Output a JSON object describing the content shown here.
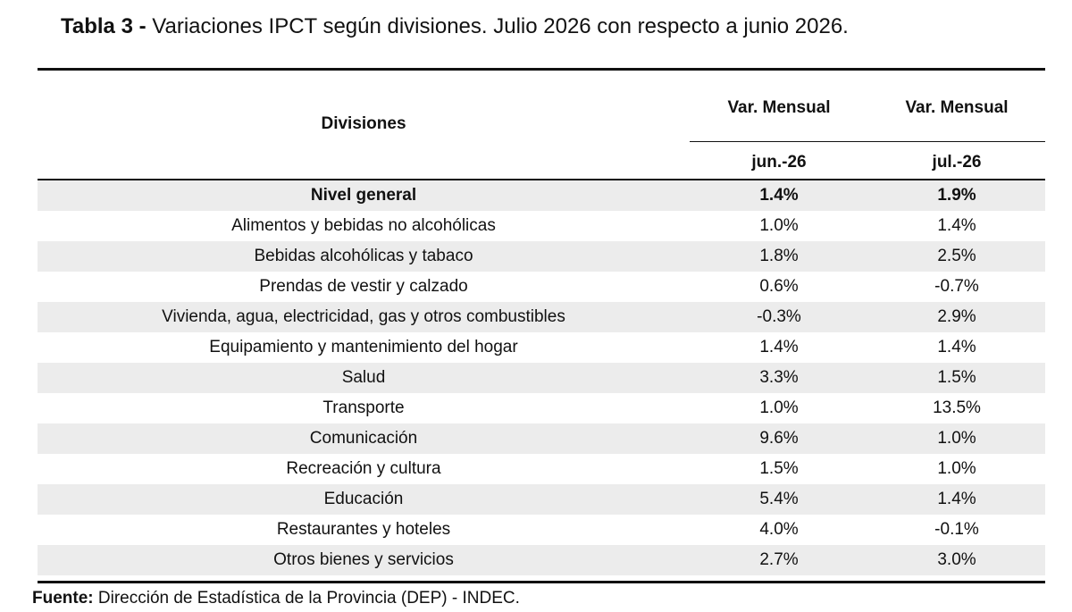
{
  "title": {
    "prefix": "Tabla 3 -",
    "text": "Variaciones IPCT según divisiones. Julio 2026 con respecto a junio 2026."
  },
  "table": {
    "header": {
      "divisions": "Divisiones",
      "var_col1": "Var. Mensual",
      "var_col2": "Var. Mensual",
      "period_col1": "jun.-26",
      "period_col2": "jul.-26"
    },
    "rows": [
      {
        "division": "Nivel general",
        "jun": "1.4%",
        "jul": "1.9%"
      },
      {
        "division": "Alimentos y bebidas no alcohólicas",
        "jun": "1.0%",
        "jul": "1.4%"
      },
      {
        "division": "Bebidas alcohólicas y tabaco",
        "jun": "1.8%",
        "jul": "2.5%"
      },
      {
        "division": "Prendas de vestir y calzado",
        "jun": "0.6%",
        "jul": "-0.7%"
      },
      {
        "division": "Vivienda, agua, electricidad, gas y otros combustibles",
        "jun": "-0.3%",
        "jul": "2.9%"
      },
      {
        "division": "Equipamiento y mantenimiento del hogar",
        "jun": "1.4%",
        "jul": "1.4%"
      },
      {
        "division": "Salud",
        "jun": "3.3%",
        "jul": "1.5%"
      },
      {
        "division": "Transporte",
        "jun": "1.0%",
        "jul": "13.5%"
      },
      {
        "division": "Comunicación",
        "jun": "9.6%",
        "jul": "1.0%"
      },
      {
        "division": "Recreación y cultura",
        "jun": "1.5%",
        "jul": "1.0%"
      },
      {
        "division": "Educación",
        "jun": "5.4%",
        "jul": "1.4%"
      },
      {
        "division": "Restaurantes y hoteles",
        "jun": "4.0%",
        "jul": "-0.1%"
      },
      {
        "division": "Otros bienes y servicios",
        "jun": "2.7%",
        "jul": "3.0%"
      }
    ]
  },
  "footer": {
    "label": "Fuente:",
    "text": "Dirección de Estadística de la Provincia (DEP) - INDEC."
  },
  "colors": {
    "shaded_row": "#ececec",
    "rule": "#111111"
  }
}
